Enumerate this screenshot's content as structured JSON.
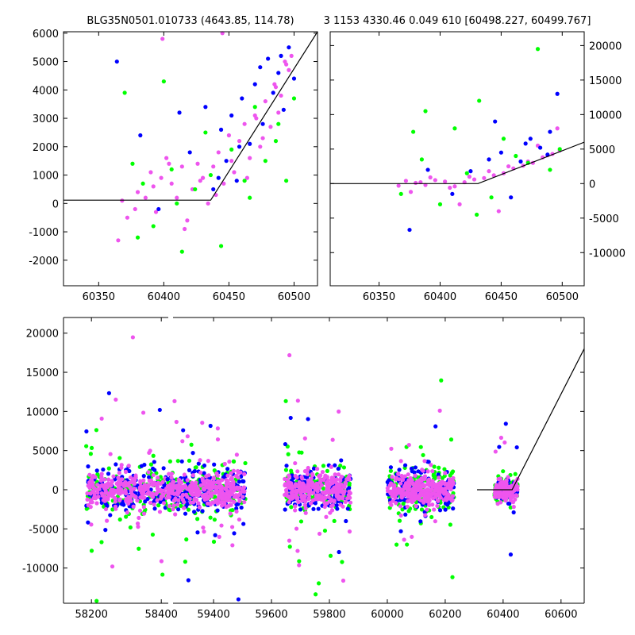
{
  "title_left": "BLG35N0501.010733 (4643.85, 114.78)",
  "title_right": "3 1153 4330.46 0.049 610 [60498.227, 60499.767]",
  "colors": {
    "blue": "#0000ff",
    "green": "#00ff00",
    "magenta": "#ee55ee",
    "model": "#000000"
  },
  "chart_data": [
    {
      "panel": "top-left",
      "type": "scatter",
      "xlim": [
        60323,
        60518
      ],
      "ylim": [
        -2900,
        6050
      ],
      "xticks": [
        60350,
        60400,
        60450,
        60500
      ],
      "yticks": [
        -2000,
        -1000,
        0,
        1000,
        2000,
        3000,
        4000,
        5000,
        6000
      ],
      "ytick_side": "left",
      "model_line": [
        [
          60323,
          115
        ],
        [
          60436,
          115
        ],
        [
          60518,
          6050
        ]
      ],
      "series": [
        {
          "color": "magenta",
          "x": [
            60365,
            60372,
            60380,
            60386,
            60390,
            60394,
            60398,
            60402,
            60406,
            60410,
            60414,
            60418,
            60422,
            60426,
            60430,
            60434,
            60438,
            60442,
            60446,
            60450,
            60454,
            60458,
            60462,
            60466,
            60470,
            60474,
            60478,
            60482,
            60486,
            60490,
            60494,
            60498,
            60368,
            60378,
            60392,
            60404,
            60416,
            60428,
            60440,
            60452,
            60464,
            60476,
            60488,
            60496,
            60399,
            60445,
            60471,
            60485,
            60493
          ],
          "y": [
            -1300,
            -500,
            400,
            200,
            1100,
            -300,
            900,
            1600,
            700,
            200,
            1300,
            -600,
            500,
            1400,
            900,
            0,
            1300,
            1800,
            700,
            2400,
            1100,
            2200,
            2800,
            1600,
            3100,
            2000,
            3600,
            2700,
            4100,
            3800,
            4900,
            5200,
            100,
            -200,
            600,
            1400,
            -900,
            800,
            300,
            1500,
            900,
            2300,
            3200,
            4700,
            5800,
            6000,
            3000,
            4200,
            5000
          ]
        },
        {
          "color": "blue",
          "x": [
            60364,
            60382,
            60396,
            60412,
            60420,
            60432,
            60438,
            60444,
            60448,
            60452,
            60456,
            60460,
            60466,
            60470,
            60476,
            60480,
            60484,
            60488,
            60492,
            60496,
            60500,
            60442,
            60458,
            60474,
            60490
          ],
          "y": [
            5000,
            2400,
            -200,
            3200,
            1800,
            3400,
            500,
            2600,
            1500,
            3100,
            800,
            3700,
            2100,
            4200,
            2800,
            5100,
            3900,
            4600,
            3300,
            5500,
            4400,
            900,
            2000,
            4800,
            5200
          ]
        },
        {
          "color": "green",
          "x": [
            60370,
            60376,
            60384,
            60392,
            60400,
            60406,
            60414,
            60424,
            60432,
            60444,
            60452,
            60462,
            60470,
            60478,
            60486,
            60494,
            60500,
            60380,
            60410,
            60436,
            60466,
            60488
          ],
          "y": [
            3900,
            1400,
            700,
            -800,
            4300,
            1200,
            -1700,
            500,
            2500,
            -1500,
            1900,
            800,
            3400,
            1500,
            2200,
            800,
            3700,
            -1200,
            0,
            1000,
            200,
            2800
          ]
        }
      ]
    },
    {
      "panel": "top-right",
      "type": "scatter",
      "xlim": [
        60310,
        60518
      ],
      "ylim": [
        -14800,
        22000
      ],
      "xticks": [
        60350,
        60400,
        60450,
        60500
      ],
      "yticks": [
        -10000,
        -5000,
        0,
        5000,
        10000,
        15000,
        20000
      ],
      "ytick_side": "right",
      "model_line": [
        [
          60310,
          0
        ],
        [
          60431,
          0
        ],
        [
          60518,
          6000
        ]
      ],
      "series": [
        {
          "color": "magenta",
          "x": [
            60366,
            60372,
            60380,
            60388,
            60396,
            60404,
            60412,
            60420,
            60428,
            60436,
            60444,
            60452,
            60460,
            60468,
            60476,
            60484,
            60492,
            60498,
            60376,
            60392,
            60408,
            60424,
            60440,
            60456,
            60472,
            60488,
            60384,
            60416,
            60448,
            60480,
            60496
          ],
          "y": [
            -300,
            400,
            100,
            -200,
            500,
            300,
            -400,
            200,
            600,
            800,
            1200,
            1500,
            2200,
            2600,
            3000,
            3800,
            4300,
            4800,
            -1200,
            900,
            -600,
            1000,
            1800,
            2500,
            3200,
            4100,
            200,
            -3000,
            -4000,
            5500,
            8000
          ]
        },
        {
          "color": "blue",
          "x": [
            60375,
            60390,
            60410,
            60425,
            60440,
            60450,
            60458,
            60466,
            60474,
            60482,
            60490,
            60496,
            60445,
            60470,
            60488
          ],
          "y": [
            -6700,
            2000,
            -1500,
            1800,
            3500,
            4500,
            -2000,
            3200,
            6500,
            5200,
            7500,
            13000,
            9000,
            5800,
            4200
          ]
        },
        {
          "color": "green",
          "x": [
            60368,
            60378,
            60388,
            60400,
            60412,
            60422,
            60432,
            60442,
            60452,
            60462,
            60472,
            60480,
            60490,
            60498,
            60385,
            60430
          ],
          "y": [
            -1500,
            7500,
            10500,
            -3000,
            8000,
            1500,
            12000,
            -2000,
            6500,
            4000,
            3000,
            19500,
            2000,
            5000,
            3500,
            -4500
          ]
        }
      ]
    },
    {
      "panel": "bottom",
      "type": "scatter",
      "xlim": [
        58120,
        60680
      ],
      "ylim": [
        -14500,
        22000
      ],
      "xticks": [
        58200,
        58400,
        59400,
        59600,
        59800,
        60000,
        60200,
        60400,
        60600
      ],
      "yticks": [
        -10000,
        -5000,
        0,
        5000,
        10000,
        15000,
        20000
      ],
      "ytick_side": "left",
      "axis_break": [
        58420,
        59260
      ],
      "model_line": [
        [
          60310,
          0
        ],
        [
          60431,
          0
        ],
        [
          60680,
          18000
        ]
      ],
      "groups": [
        {
          "center": 58300,
          "width": 230,
          "spread": 1500,
          "n": 130,
          "seed": 11
        },
        {
          "center": 59375,
          "width": 270,
          "spread": 1500,
          "n": 150,
          "seed": 23
        },
        {
          "center": 59760,
          "width": 230,
          "spread": 1500,
          "n": 140,
          "seed": 37
        },
        {
          "center": 60115,
          "width": 230,
          "spread": 1500,
          "n": 140,
          "seed": 51
        },
        {
          "center": 60410,
          "width": 80,
          "spread": 900,
          "n": 60,
          "seed": 73
        }
      ]
    }
  ]
}
